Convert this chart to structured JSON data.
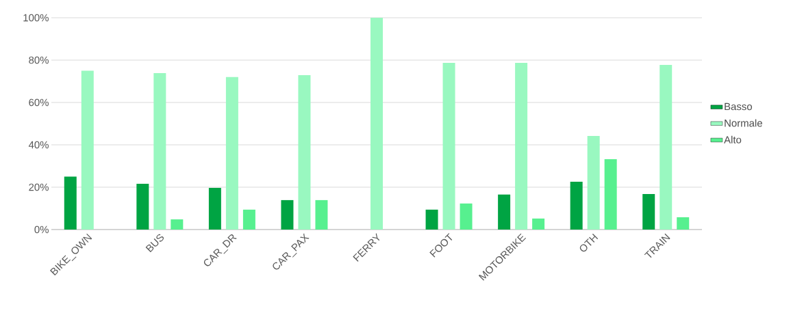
{
  "chart_data": {
    "type": "bar",
    "categories": [
      "BIKE_OWN",
      "BUS",
      "CAR_DR",
      "CAR_PAX",
      "FERRY",
      "FOOT",
      "MOTORBIKE",
      "OTH",
      "TRAIN"
    ],
    "series": [
      {
        "name": "Basso",
        "color": "#00a443",
        "values": [
          25,
          21.6,
          19.7,
          13.9,
          0,
          9.4,
          16.5,
          22.6,
          16.8
        ]
      },
      {
        "name": "Normale",
        "color": "#99f8c0",
        "values": [
          75,
          73.9,
          72,
          72.9,
          100,
          78.7,
          78.7,
          44.2,
          77.7
        ]
      },
      {
        "name": "Alto",
        "color": "#57f08f",
        "values": [
          0,
          4.8,
          9.4,
          13.9,
          0,
          12.3,
          5.2,
          33.2,
          5.8
        ]
      }
    ],
    "ylim": [
      0,
      100
    ],
    "yticks": [
      {
        "value": 0,
        "label": "0%"
      },
      {
        "value": 20,
        "label": "20%"
      },
      {
        "value": 40,
        "label": "40%"
      },
      {
        "value": 60,
        "label": "60%"
      },
      {
        "value": 80,
        "label": "80%"
      },
      {
        "value": 100,
        "label": "100%"
      }
    ],
    "grid": "y",
    "legend": "right"
  }
}
